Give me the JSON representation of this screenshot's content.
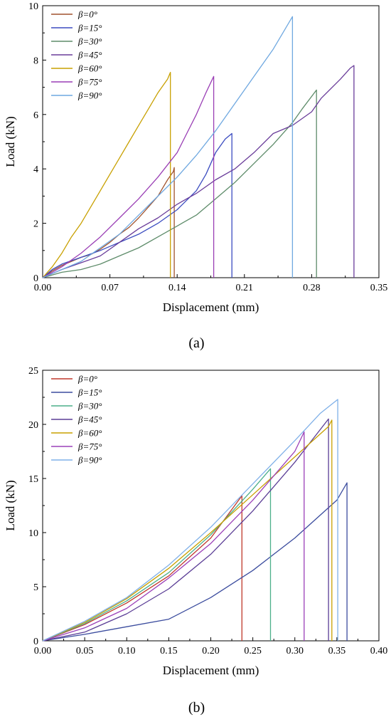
{
  "chart_data": [
    {
      "type": "line",
      "panel_label": "(a)",
      "xlabel": "Displacement (mm)",
      "ylabel": "Load (kN)",
      "xlim": [
        0,
        0.35
      ],
      "ylim": [
        0,
        10
      ],
      "x_ticks": [
        "0.00",
        "0.07",
        "0.14",
        "0.21",
        "0.28",
        "0.35"
      ],
      "y_ticks": [
        "0",
        "2",
        "4",
        "6",
        "8",
        "10"
      ],
      "grid": false,
      "legend_position": "top-left",
      "series": [
        {
          "name": "β=0°",
          "color": "#a0522d",
          "points": [
            [
              0,
              0
            ],
            [
              0.01,
              0.25
            ],
            [
              0.02,
              0.45
            ],
            [
              0.03,
              0.6
            ],
            [
              0.04,
              0.75
            ],
            [
              0.05,
              0.85
            ],
            [
              0.06,
              1.05
            ],
            [
              0.07,
              1.3
            ],
            [
              0.08,
              1.6
            ],
            [
              0.09,
              1.85
            ],
            [
              0.1,
              2.2
            ],
            [
              0.11,
              2.6
            ],
            [
              0.12,
              3.0
            ],
            [
              0.125,
              3.3
            ],
            [
              0.13,
              3.6
            ],
            [
              0.134,
              3.8
            ],
            [
              0.136,
              3.9
            ],
            [
              0.137,
              4.05
            ],
            [
              0.137,
              0
            ]
          ]
        },
        {
          "name": "β=15°",
          "color": "#3b4cc0",
          "points": [
            [
              0,
              0
            ],
            [
              0.01,
              0.3
            ],
            [
              0.02,
              0.5
            ],
            [
              0.04,
              0.75
            ],
            [
              0.06,
              1.0
            ],
            [
              0.08,
              1.3
            ],
            [
              0.1,
              1.6
            ],
            [
              0.12,
              2.0
            ],
            [
              0.14,
              2.5
            ],
            [
              0.16,
              3.2
            ],
            [
              0.17,
              3.8
            ],
            [
              0.18,
              4.6
            ],
            [
              0.19,
              5.1
            ],
            [
              0.197,
              5.3
            ],
            [
              0.197,
              0
            ]
          ]
        },
        {
          "name": "β=30°",
          "color": "#5e8c6a",
          "points": [
            [
              0,
              0
            ],
            [
              0.02,
              0.2
            ],
            [
              0.04,
              0.3
            ],
            [
              0.06,
              0.5
            ],
            [
              0.08,
              0.8
            ],
            [
              0.1,
              1.1
            ],
            [
              0.12,
              1.5
            ],
            [
              0.14,
              1.9
            ],
            [
              0.16,
              2.3
            ],
            [
              0.18,
              2.9
            ],
            [
              0.2,
              3.5
            ],
            [
              0.22,
              4.2
            ],
            [
              0.24,
              4.9
            ],
            [
              0.26,
              5.7
            ],
            [
              0.27,
              6.2
            ],
            [
              0.285,
              6.9
            ],
            [
              0.285,
              0
            ]
          ]
        },
        {
          "name": "β=45°",
          "color": "#6a3d9a",
          "points": [
            [
              0,
              0
            ],
            [
              0.02,
              0.3
            ],
            [
              0.04,
              0.55
            ],
            [
              0.06,
              0.8
            ],
            [
              0.08,
              1.3
            ],
            [
              0.1,
              1.8
            ],
            [
              0.12,
              2.2
            ],
            [
              0.14,
              2.7
            ],
            [
              0.16,
              3.1
            ],
            [
              0.18,
              3.6
            ],
            [
              0.2,
              4.0
            ],
            [
              0.22,
              4.6
            ],
            [
              0.24,
              5.3
            ],
            [
              0.26,
              5.6
            ],
            [
              0.28,
              6.1
            ],
            [
              0.29,
              6.6
            ],
            [
              0.31,
              7.3
            ],
            [
              0.32,
              7.7
            ],
            [
              0.324,
              7.8
            ],
            [
              0.324,
              0
            ]
          ]
        },
        {
          "name": "β=60°",
          "color": "#c8a000",
          "points": [
            [
              0,
              0
            ],
            [
              0.01,
              0.4
            ],
            [
              0.02,
              0.9
            ],
            [
              0.03,
              1.5
            ],
            [
              0.04,
              2.0
            ],
            [
              0.05,
              2.6
            ],
            [
              0.06,
              3.2
            ],
            [
              0.07,
              3.8
            ],
            [
              0.08,
              4.4
            ],
            [
              0.09,
              5.0
            ],
            [
              0.1,
              5.6
            ],
            [
              0.11,
              6.2
            ],
            [
              0.12,
              6.8
            ],
            [
              0.13,
              7.3
            ],
            [
              0.133,
              7.55
            ],
            [
              0.133,
              0
            ]
          ]
        },
        {
          "name": "β=75°",
          "color": "#9a3fb5",
          "points": [
            [
              0,
              0
            ],
            [
              0.02,
              0.4
            ],
            [
              0.04,
              0.9
            ],
            [
              0.06,
              1.5
            ],
            [
              0.08,
              2.2
            ],
            [
              0.1,
              2.9
            ],
            [
              0.12,
              3.7
            ],
            [
              0.14,
              4.6
            ],
            [
              0.15,
              5.3
            ],
            [
              0.16,
              6.0
            ],
            [
              0.17,
              6.8
            ],
            [
              0.178,
              7.4
            ],
            [
              0.178,
              0
            ]
          ]
        },
        {
          "name": "β=90°",
          "color": "#6fa8e0",
          "points": [
            [
              0,
              0
            ],
            [
              0.02,
              0.3
            ],
            [
              0.04,
              0.6
            ],
            [
              0.06,
              1.1
            ],
            [
              0.08,
              1.6
            ],
            [
              0.1,
              2.3
            ],
            [
              0.12,
              3.0
            ],
            [
              0.14,
              3.7
            ],
            [
              0.16,
              4.5
            ],
            [
              0.18,
              5.4
            ],
            [
              0.2,
              6.4
            ],
            [
              0.22,
              7.4
            ],
            [
              0.24,
              8.4
            ],
            [
              0.25,
              9.0
            ],
            [
              0.26,
              9.6
            ],
            [
              0.26,
              0
            ]
          ]
        }
      ]
    },
    {
      "type": "line",
      "panel_label": "(b)",
      "xlabel": "Displacement (mm)",
      "ylabel": "Load (kN)",
      "xlim": [
        0,
        0.4
      ],
      "ylim": [
        0,
        25
      ],
      "x_ticks": [
        "0.00",
        "0.05",
        "0.10",
        "0.15",
        "0.20",
        "0.25",
        "0.30",
        "0.35",
        "0.40"
      ],
      "y_ticks": [
        "0",
        "5",
        "10",
        "15",
        "20",
        "25"
      ],
      "grid": false,
      "legend_position": "top-left",
      "series": [
        {
          "name": "β=0°",
          "color": "#c0392b",
          "points": [
            [
              0,
              0
            ],
            [
              0.05,
              1.5
            ],
            [
              0.1,
              3.5
            ],
            [
              0.15,
              6.0
            ],
            [
              0.2,
              9.5
            ],
            [
              0.237,
              13.4
            ],
            [
              0.237,
              0
            ]
          ]
        },
        {
          "name": "β=15°",
          "color": "#3b4c9e",
          "points": [
            [
              0,
              0
            ],
            [
              0.05,
              0.6
            ],
            [
              0.1,
              1.3
            ],
            [
              0.15,
              2.0
            ],
            [
              0.2,
              4.0
            ],
            [
              0.25,
              6.5
            ],
            [
              0.3,
              9.5
            ],
            [
              0.35,
              13.0
            ],
            [
              0.362,
              14.6
            ],
            [
              0.362,
              0
            ]
          ]
        },
        {
          "name": "β=30°",
          "color": "#4caf8a",
          "points": [
            [
              0,
              0
            ],
            [
              0.05,
              1.6
            ],
            [
              0.1,
              3.7
            ],
            [
              0.15,
              6.3
            ],
            [
              0.2,
              9.8
            ],
            [
              0.25,
              14.0
            ],
            [
              0.271,
              15.9
            ],
            [
              0.271,
              0
            ]
          ]
        },
        {
          "name": "β=45°",
          "color": "#5b3e96",
          "points": [
            [
              0,
              0
            ],
            [
              0.05,
              0.8
            ],
            [
              0.1,
              2.5
            ],
            [
              0.15,
              4.8
            ],
            [
              0.2,
              8.0
            ],
            [
              0.25,
              12.0
            ],
            [
              0.3,
              16.5
            ],
            [
              0.33,
              19.5
            ],
            [
              0.34,
              20.5
            ],
            [
              0.34,
              0
            ]
          ]
        },
        {
          "name": "β=60°",
          "color": "#c8a000",
          "points": [
            [
              0,
              0
            ],
            [
              0.05,
              1.7
            ],
            [
              0.1,
              3.9
            ],
            [
              0.15,
              6.7
            ],
            [
              0.2,
              10.0
            ],
            [
              0.25,
              13.5
            ],
            [
              0.3,
              17.0
            ],
            [
              0.34,
              19.8
            ],
            [
              0.344,
              20.4
            ],
            [
              0.344,
              0
            ]
          ]
        },
        {
          "name": "β=75°",
          "color": "#9b40b8",
          "points": [
            [
              0,
              0
            ],
            [
              0.05,
              1.2
            ],
            [
              0.1,
              3.0
            ],
            [
              0.15,
              5.8
            ],
            [
              0.2,
              9.0
            ],
            [
              0.25,
              13.0
            ],
            [
              0.3,
              17.5
            ],
            [
              0.311,
              19.3
            ],
            [
              0.311,
              0
            ]
          ]
        },
        {
          "name": "β=90°",
          "color": "#7fb0e8",
          "points": [
            [
              0,
              0
            ],
            [
              0.05,
              1.8
            ],
            [
              0.1,
              4.0
            ],
            [
              0.15,
              7.0
            ],
            [
              0.2,
              10.5
            ],
            [
              0.25,
              14.5
            ],
            [
              0.3,
              18.5
            ],
            [
              0.33,
              21.0
            ],
            [
              0.351,
              22.3
            ],
            [
              0.351,
              0
            ]
          ]
        }
      ]
    }
  ]
}
